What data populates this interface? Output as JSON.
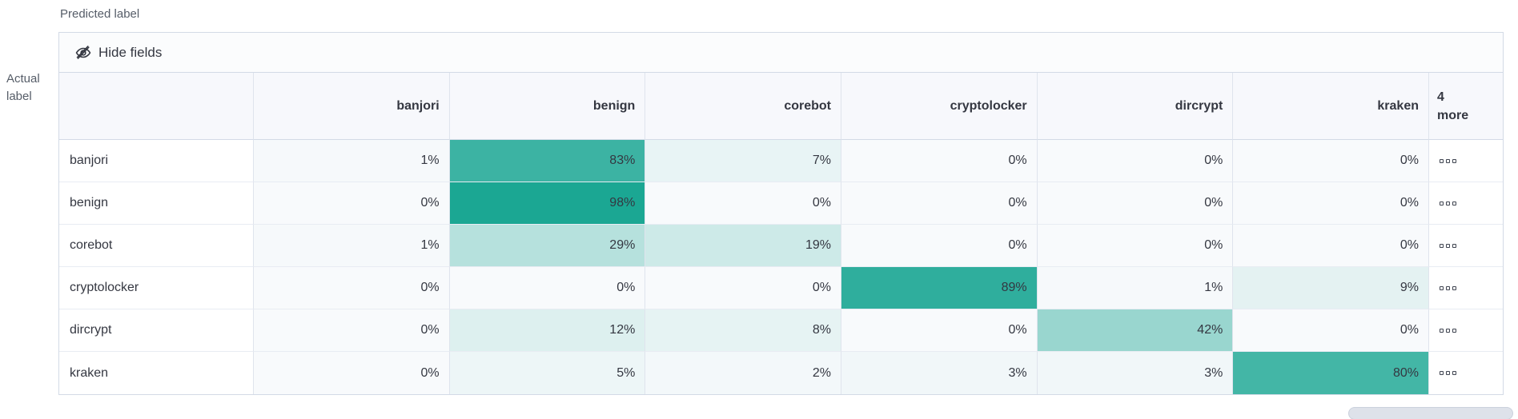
{
  "axis": {
    "predicted": "Predicted label",
    "actual": "Actual label"
  },
  "toolbar": {
    "hide_fields_label": "Hide fields"
  },
  "grid": {
    "columns": [
      "banjori",
      "benign",
      "corebot",
      "cryptolocker",
      "dircrypt",
      "kraken"
    ],
    "more_header": [
      "4",
      "more"
    ],
    "rows": [
      {
        "label": "banjori",
        "cells": [
          "1%",
          "83%",
          "7%",
          "0%",
          "0%",
          "0%"
        ]
      },
      {
        "label": "benign",
        "cells": [
          "0%",
          "98%",
          "0%",
          "0%",
          "0%",
          "0%"
        ]
      },
      {
        "label": "corebot",
        "cells": [
          "1%",
          "29%",
          "19%",
          "0%",
          "0%",
          "0%"
        ]
      },
      {
        "label": "cryptolocker",
        "cells": [
          "0%",
          "0%",
          "0%",
          "89%",
          "1%",
          "9%"
        ]
      },
      {
        "label": "dircrypt",
        "cells": [
          "0%",
          "12%",
          "8%",
          "0%",
          "42%",
          "0%"
        ]
      },
      {
        "label": "kraken",
        "cells": [
          "0%",
          "5%",
          "2%",
          "3%",
          "3%",
          "80%"
        ]
      }
    ]
  },
  "chart_data": {
    "type": "heatmap",
    "xlabel": "Predicted label",
    "ylabel": "Actual label",
    "x_categories": [
      "banjori",
      "benign",
      "corebot",
      "cryptolocker",
      "dircrypt",
      "kraken"
    ],
    "x_hidden_columns_note": "4 more",
    "y_categories": [
      "banjori",
      "benign",
      "corebot",
      "cryptolocker",
      "dircrypt",
      "kraken"
    ],
    "values_percent": [
      [
        1,
        83,
        7,
        0,
        0,
        0
      ],
      [
        0,
        98,
        0,
        0,
        0,
        0
      ],
      [
        1,
        29,
        19,
        0,
        0,
        0
      ],
      [
        0,
        0,
        0,
        89,
        1,
        9
      ],
      [
        0,
        12,
        8,
        0,
        42,
        0
      ],
      [
        0,
        5,
        2,
        3,
        3,
        80
      ]
    ]
  },
  "colors": {
    "heat_base": "#16A591",
    "cell_low_bg": "#F8FAFC",
    "header_bg": "#F7F8FC",
    "toolbar_bg": "#FBFCFD",
    "outer_border": "#D3DAE6",
    "col_border": "#DFE4ED",
    "row_border": "#E8ECF3",
    "text": "#343741",
    "muted_text": "#565D68",
    "scrollbar_thumb": "#DEE2EA",
    "scrollbar_border": "#CBD1DC"
  }
}
